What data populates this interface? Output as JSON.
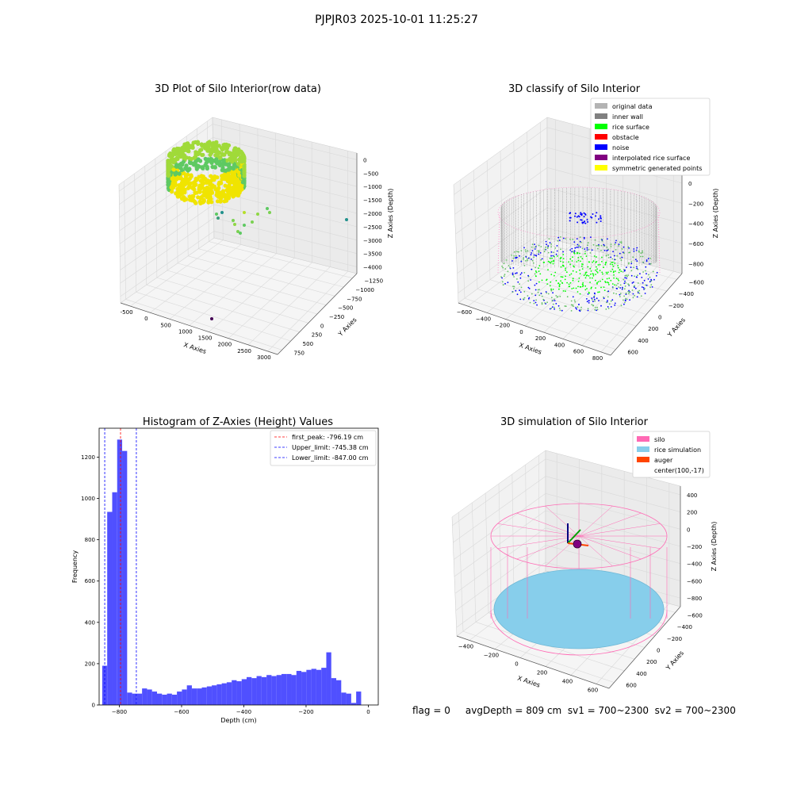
{
  "suptitle": "PJPJR03 2025-10-01 11:25:27",
  "status_line": "flag = 0     avgDepth = 809 cm  sv1 = 700~2300  sv2 = 700~2300",
  "colors": {
    "original_data": "#b3b3b3",
    "inner_wall": "#808080",
    "rice_surface": "#00ff00",
    "obstacle": "#ff0000",
    "noise": "#0000ff",
    "interpolated_rice_surface": "#800080",
    "symmetric_generated_points": "#ffff00",
    "silo": "#ff69b4",
    "rice_simulation": "#87ceeb",
    "auger": "#ff4500",
    "histogram_bar": "#5050ff",
    "first_peak_line": "#ff0000",
    "limit_line": "#0000ff"
  },
  "chart_data": [
    {
      "type": "scatter",
      "subtype": "3d",
      "title": "3D Plot of Silo Interior(row data)",
      "xlabel": "X Axies",
      "ylabel": "Y Axies",
      "zlabel": "Z Axies (Depth)",
      "x_ticks": [
        "-500",
        "0",
        "500",
        "1000",
        "1500",
        "2000",
        "2500",
        "3000"
      ],
      "y_ticks": [
        "750",
        "500",
        "250",
        "0",
        "−250",
        "−500",
        "−750",
        "−1000",
        "−1250"
      ],
      "z_ticks": [
        "0",
        "−500",
        "−1000",
        "−1500",
        "−2000",
        "−2500",
        "−3000",
        "−3500",
        "−4000"
      ],
      "colormap": "viridis",
      "grid": true
    },
    {
      "type": "scatter",
      "subtype": "3d",
      "title": "3D classify of Silo Interior",
      "xlabel": "X Axies",
      "ylabel": "Y Axies",
      "zlabel": "Z Axies (Depth)",
      "x_ticks": [
        "−600",
        "−400",
        "−200",
        "0",
        "200",
        "400",
        "600",
        "800"
      ],
      "y_ticks": [
        "600",
        "400",
        "200",
        "0",
        "−200",
        "−400",
        "−600"
      ],
      "z_ticks": [
        "200",
        "0",
        "−200",
        "−400",
        "−600",
        "−800"
      ],
      "legend": [
        "original data",
        "inner wall",
        "rice surface",
        "obstacle",
        "noise",
        "interpolated rice surface",
        "symmetric generated points"
      ],
      "legend_position": "top-right",
      "grid": true
    },
    {
      "type": "bar",
      "subtype": "histogram",
      "title": "Histogram of Z-Axies (Height) Values",
      "xlabel": "Depth (cm)",
      "ylabel": "Frequency",
      "xlim": [
        -865,
        32
      ],
      "ylim": [
        0,
        1340
      ],
      "x_ticks": [
        "−800",
        "−600",
        "−400",
        "−200",
        "0"
      ],
      "y_ticks": [
        "0",
        "200",
        "400",
        "600",
        "800",
        "1000",
        "1200"
      ],
      "bin_width": 16,
      "bin_start": -855,
      "values": [
        190,
        935,
        1030,
        1285,
        1230,
        60,
        55,
        55,
        80,
        75,
        65,
        55,
        50,
        55,
        50,
        65,
        75,
        95,
        80,
        80,
        85,
        90,
        95,
        100,
        105,
        110,
        120,
        115,
        125,
        135,
        130,
        140,
        135,
        145,
        140,
        145,
        150,
        150,
        145,
        165,
        160,
        170,
        175,
        170,
        180,
        255,
        130,
        120,
        60,
        55,
        10,
        65
      ],
      "vlines": [
        {
          "label": "first_peak: -796.19 cm",
          "x": -796.19,
          "color": "#ff0000"
        },
        {
          "label": "Upper_limit: -745.38 cm",
          "x": -745.38,
          "color": "#0000ff"
        },
        {
          "label": "Lower_limit: -847.00 cm",
          "x": -847.0,
          "color": "#0000ff"
        }
      ],
      "legend_position": "top-right"
    },
    {
      "type": "scatter",
      "subtype": "3d",
      "title": "3D simulation of Silo Interior",
      "xlabel": "X Axies",
      "ylabel": "Y Axies",
      "zlabel": "Z Axies (Depth)",
      "x_ticks": [
        "−400",
        "−200",
        "0",
        "200",
        "400",
        "600"
      ],
      "y_ticks": [
        "600",
        "400",
        "200",
        "0",
        "−200",
        "−400",
        "−600"
      ],
      "z_ticks": [
        "400",
        "200",
        "0",
        "−200",
        "−400",
        "−600",
        "−800"
      ],
      "legend": [
        "silo",
        "rice simulation",
        "auger",
        "center(100,-17)"
      ],
      "legend_position": "top-right",
      "grid": true
    }
  ]
}
